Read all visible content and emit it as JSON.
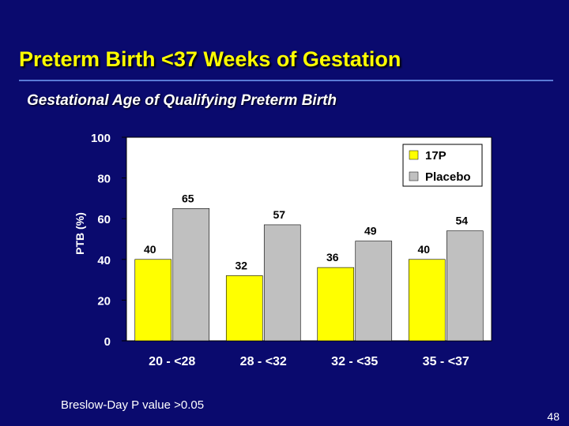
{
  "slide": {
    "title": "Preterm Birth <37 Weeks of Gestation",
    "subtitle": "Gestational Age of Qualifying Preterm Birth",
    "footnote": "Breslow-Day P value >0.05",
    "page_number": "48"
  },
  "colors": {
    "background": "#0a0a6e",
    "title": "#ffff00",
    "series_17p": "#ffff00",
    "series_placebo": "#c0c0c0",
    "text": "#ffffff"
  },
  "chart_data": {
    "type": "bar",
    "title": "",
    "xlabel": "",
    "ylabel": "PTB (%)",
    "categories": [
      "20 - <28",
      "28 - <32",
      "32 - <35",
      "35 - <37"
    ],
    "series": [
      {
        "name": "17P",
        "values": [
          40,
          32,
          36,
          40
        ]
      },
      {
        "name": "Placebo",
        "values": [
          65,
          57,
          49,
          54
        ]
      }
    ],
    "ylim": [
      0,
      100
    ],
    "yticks": [
      "0",
      "20",
      "40",
      "60",
      "80",
      "100"
    ],
    "grid": false,
    "legend": "top-right",
    "data_labels": true
  }
}
